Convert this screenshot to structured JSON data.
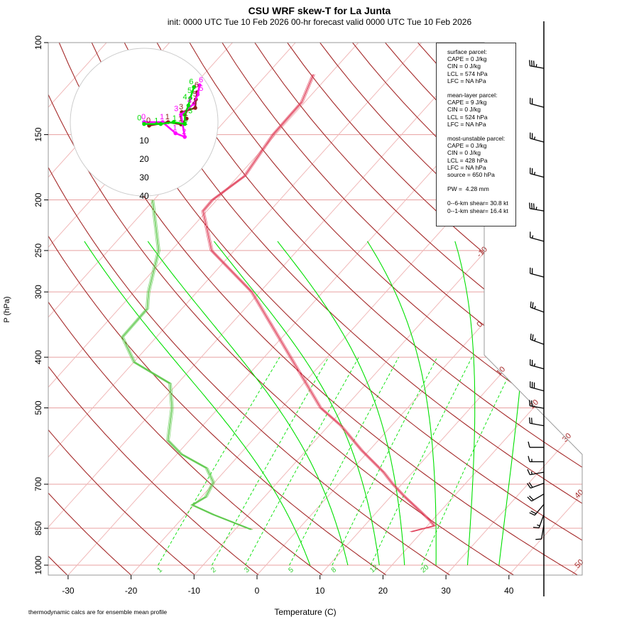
{
  "title": "CSU WRF skew-T for La Junta",
  "subtitle": "init: 0000 UTC Tue 10 Feb 2026     00-hr forecast valid 0000 UTC Tue 10 Feb 2026",
  "footnote": "thermodynamic calcs are for ensemble mean profile",
  "info": {
    "surface": [
      "surface parcel:",
      "CAPE = 0 J/kg",
      "CIN = 0 J/kg",
      "LCL = 574 hPa",
      "LFC = NA hPa"
    ],
    "mean_layer": [
      "mean-layer parcel:",
      "CAPE = 9 J/kg",
      "CIN = 0 J/kg",
      "LCL = 524 hPa",
      "LFC = NA hPa"
    ],
    "most_unstable": [
      "most-unstable parcel:",
      "CAPE = 0 J/kg",
      "CIN = 0 J/kg",
      "LCL = 428 hPa",
      "LFC = NA hPa",
      "source = 650 hPa"
    ],
    "pw": "PW =  4.28 mm",
    "shear": [
      "0--6-km shear= 30.8 kt",
      "0--1-km shear= 16.4 kt"
    ]
  },
  "chart_data": {
    "type": "line",
    "subtype": "skew-T log-P",
    "xlabel": "Temperature (C)",
    "ylabel": "P (hPa)",
    "x_ticks": [
      -30,
      -20,
      -10,
      0,
      10,
      20,
      30,
      40
    ],
    "y_ticks": [
      100,
      150,
      200,
      250,
      300,
      400,
      500,
      700,
      850,
      1000
    ],
    "ylim": [
      1050,
      100
    ],
    "y_scale": "log",
    "isotherm_labels": [
      -10,
      0,
      10,
      20,
      30,
      40,
      50
    ],
    "mixing_ratio_labels": [
      1,
      2,
      3,
      5,
      8,
      12,
      20
    ],
    "dry_adiabats_theta_K": [
      240,
      250,
      260,
      270,
      280,
      290,
      300,
      310,
      320,
      330,
      340,
      350,
      360,
      370,
      380,
      390,
      400,
      410,
      420,
      430,
      440,
      450,
      460,
      470
    ],
    "moist_adiabats_start_T_1000hPa": [
      7,
      13,
      18,
      22,
      27,
      32,
      37
    ],
    "colors": {
      "temperature": "#e0405a",
      "dewpoint": "#5cc84a",
      "dry_adiabat": "#a52a2a",
      "moist_adiabat": "#00e000",
      "isotherm": "#f0b8b8",
      "isobar": "#e8a0a0"
    },
    "temperature": {
      "p": [
        863,
        841,
        823,
        784,
        740,
        700,
        664,
        604,
        541,
        500,
        400,
        300,
        250,
        210,
        200,
        180,
        150,
        130,
        115
      ],
      "T": [
        18.3,
        21.1,
        19.8,
        16.4,
        12.3,
        8.6,
        5.4,
        -1.1,
        -8.0,
        -13.8,
        -25.8,
        -41.3,
        -53.6,
        -60.6,
        -60.7,
        -59.0,
        -60.4,
        -60.5,
        -62.6
      ]
    },
    "dewpoint": {
      "p": [
        855,
        800,
        767,
        740,
        694,
        652,
        613,
        577,
        500,
        449,
        409,
        366,
        323,
        300,
        250,
        200
      ],
      "Td": [
        -7.4,
        -15.6,
        -20.3,
        -19.3,
        -20.2,
        -23.3,
        -29.3,
        -33.4,
        -37.4,
        -41.2,
        -49.9,
        -55.4,
        -55.5,
        -57.7,
        -62,
        -70.2
      ]
    },
    "wind_barbs": {
      "p": [
        112,
        133,
        155,
        181,
        210,
        240,
        281,
        328,
        378,
        421,
        464,
        501,
        541,
        595,
        634,
        664,
        697,
        731,
        765,
        800,
        838
      ],
      "dir": [
        280,
        285,
        285,
        285,
        280,
        285,
        285,
        290,
        290,
        285,
        285,
        280,
        280,
        270,
        270,
        260,
        250,
        240,
        220,
        200,
        190
      ],
      "kt": [
        35,
        20,
        25,
        25,
        35,
        15,
        20,
        25,
        25,
        25,
        30,
        20,
        20,
        10,
        15,
        15,
        20,
        20,
        20,
        15,
        10
      ]
    },
    "hodograph": {
      "ring_labels": [
        10,
        20,
        30,
        40
      ],
      "traces": [
        {
          "color": "#8b2020",
          "u": [
            2.7,
            13,
            20,
            23,
            20.4,
            27.7,
            28,
            28.8
          ],
          "v": [
            -1.9,
            0,
            -1.2,
            1.9,
            5.4,
            7.7,
            12.3,
            16.2
          ],
          "labels": [
            "0",
            "1",
            "1",
            "2",
            "3",
            "4",
            "5",
            "6"
          ]
        },
        {
          "color": "#ff00ff",
          "u": [
            0,
            10,
            17,
            22,
            20,
            27,
            29,
            30
          ],
          "v": [
            0,
            0,
            -6,
            -8,
            4,
            10,
            15,
            20
          ],
          "labels": [
            "0",
            "1",
            "1",
            "2",
            "3",
            "4",
            "5",
            "6"
          ]
        },
        {
          "color": "#00dd00",
          "u": [
            0,
            9,
            16,
            22,
            22,
            24,
            25,
            27
          ],
          "v": [
            -1,
            -1,
            0,
            -1,
            4,
            9,
            13,
            19
          ],
          "labels": [
            "0",
            "1",
            "1",
            "2",
            "3",
            "4",
            "5",
            "6"
          ]
        }
      ]
    }
  }
}
